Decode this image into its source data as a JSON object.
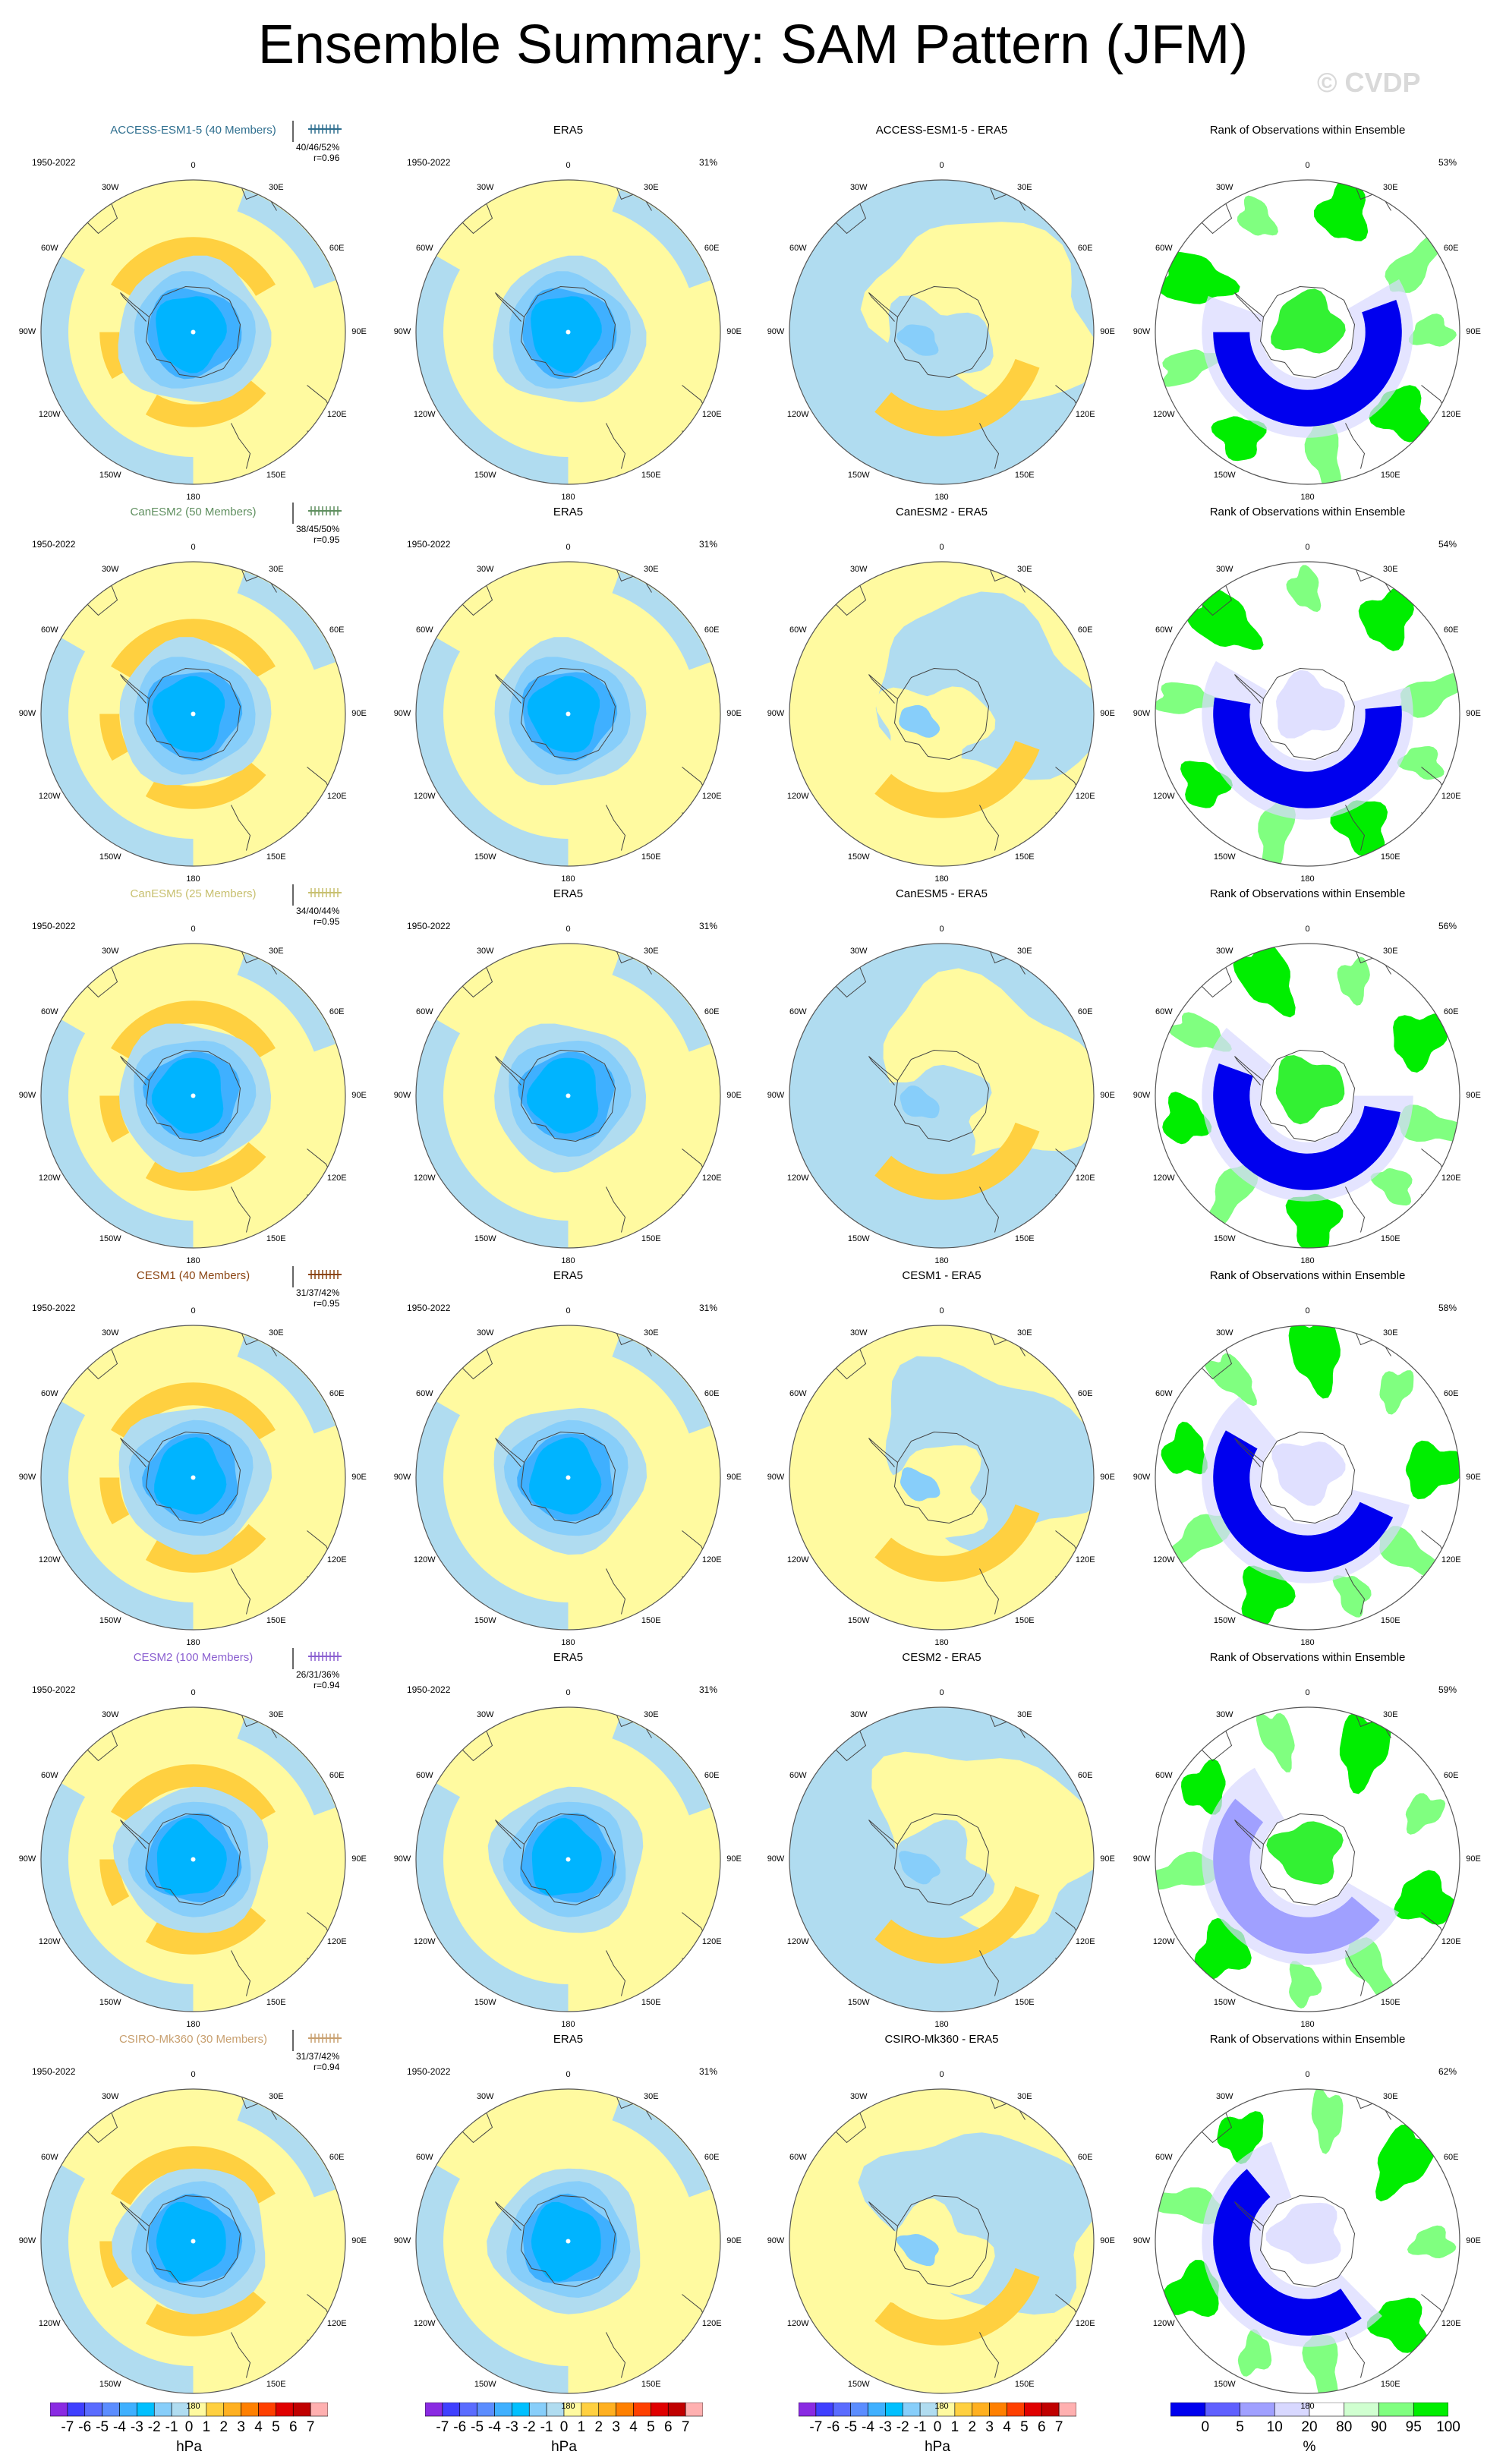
{
  "figure": {
    "title": "Ensemble Summary: SAM Pattern (JFM)",
    "watermark": "© CVDP",
    "period": "1950-2022",
    "era5_variance": "31%",
    "column_titles_fixed": {
      "obs": "ERA5",
      "rank": "Rank of Observations within Ensemble"
    }
  },
  "longitude_labels": [
    "0",
    "30E",
    "60E",
    "90E",
    "120E",
    "150E",
    "180",
    "150W",
    "120W",
    "90W",
    "60W",
    "30W"
  ],
  "rows": [
    {
      "model": "ACCESS-ESM1-5 (40 Members)",
      "model_color": "#2f6f8f",
      "stats": "40/46/52%",
      "r": "r=0.96",
      "diff_title": "ACCESS-ESM1-5 - ERA5",
      "rank_pct": "53%"
    },
    {
      "model": "CanESM2 (50 Members)",
      "model_color": "#5f8f5f",
      "stats": "38/45/50%",
      "r": "r=0.95",
      "diff_title": "CanESM2 - ERA5",
      "rank_pct": "54%"
    },
    {
      "model": "CanESM5 (25 Members)",
      "model_color": "#c8c070",
      "stats": "34/40/44%",
      "r": "r=0.95",
      "diff_title": "CanESM5 - ERA5",
      "rank_pct": "56%"
    },
    {
      "model": "CESM1 (40 Members)",
      "model_color": "#8b4513",
      "stats": "31/37/42%",
      "r": "r=0.95",
      "diff_title": "CESM1 - ERA5",
      "rank_pct": "58%"
    },
    {
      "model": "CESM2 (100 Members)",
      "model_color": "#8a5fd0",
      "stats": "26/31/36%",
      "r": "r=0.94",
      "diff_title": "CESM2 - ERA5",
      "rank_pct": "59%"
    },
    {
      "model": "CSIRO-Mk360 (30 Members)",
      "model_color": "#c8a070",
      "stats": "31/37/42%",
      "r": "r=0.94",
      "diff_title": "CSIRO-Mk360 - ERA5",
      "rank_pct": "62%"
    }
  ],
  "colorbars": {
    "pattern": {
      "ticks": [
        "-7",
        "-6",
        "-5",
        "-4",
        "-3",
        "-2",
        "-1",
        "0",
        "1",
        "2",
        "3",
        "4",
        "5",
        "6",
        "7"
      ],
      "unit": "hPa",
      "colors": [
        "#8a2be2",
        "#4040ff",
        "#5a6cff",
        "#5b8dff",
        "#3fb0ff",
        "#00c0ff",
        "#87cefa",
        "#b0dcf0",
        "#fffaa0",
        "#ffd040",
        "#ffb020",
        "#ff8000",
        "#ff4000",
        "#e00000",
        "#c00000",
        "#ffb0b0"
      ]
    },
    "rank": {
      "ticks": [
        "0",
        "5",
        "10",
        "20",
        "80",
        "90",
        "95",
        "100"
      ],
      "unit": "%",
      "colors": [
        "#0000ee",
        "#6060ff",
        "#a0a0ff",
        "#d8d8ff",
        "#ffffff",
        "#d0ffd0",
        "#80ff80",
        "#00ee00"
      ]
    }
  }
}
